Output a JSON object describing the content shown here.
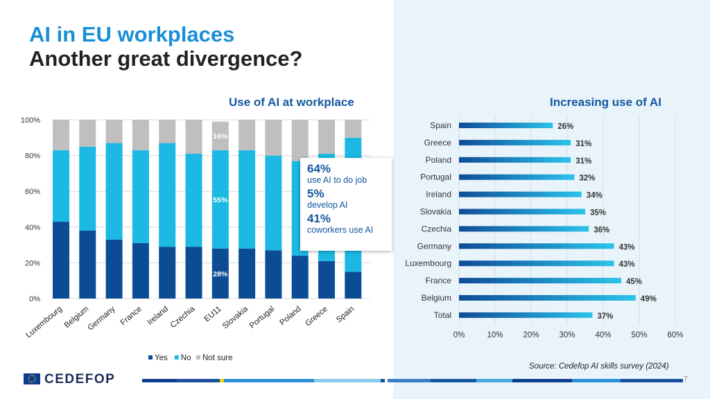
{
  "header": {
    "title_line1": "AI in EU workplaces",
    "title_line2": "Another great divergence?"
  },
  "colors": {
    "yes": "#0c4c94",
    "no": "#1bb9e3",
    "not_sure": "#bfbfbf",
    "bar_dark": "#0f4c97",
    "bar_light": "#2bc3ea",
    "title_blue": "#1a8fd6",
    "panel_bg": "#e9f3fa"
  },
  "chart_data": [
    {
      "type": "bar",
      "stacked": true,
      "title": "Use of AI at workplace",
      "categories": [
        "Luxembourg",
        "Belgium",
        "Germany",
        "France",
        "Ireland",
        "Czechia",
        "EU11",
        "Slovakia",
        "Portugal",
        "Poland",
        "Greece",
        "Spain"
      ],
      "series": [
        {
          "name": "Yes",
          "values": [
            43,
            38,
            33,
            31,
            29,
            29,
            28,
            28,
            27,
            24,
            21,
            15
          ]
        },
        {
          "name": "No",
          "values": [
            40,
            47,
            54,
            52,
            58,
            52,
            55,
            55,
            53,
            53,
            60,
            75
          ]
        },
        {
          "name": "Not sure",
          "values": [
            17,
            15,
            13,
            17,
            13,
            19,
            16,
            17,
            20,
            23,
            19,
            10
          ]
        }
      ],
      "data_labels": [
        {
          "category": "EU11",
          "series": "Not sure",
          "text": "16%"
        },
        {
          "category": "EU11",
          "series": "No",
          "text": "55%"
        },
        {
          "category": "EU11",
          "series": "Yes",
          "text": "28%"
        }
      ],
      "y_ticks": [
        "0%",
        "20%",
        "40%",
        "60%",
        "80%",
        "100%"
      ],
      "ylim": [
        0,
        100
      ],
      "legend": [
        "Yes",
        "No",
        "Not sure"
      ],
      "legend_position": "bottom"
    },
    {
      "type": "bar",
      "orientation": "horizontal",
      "title": "Increasing use of AI",
      "categories": [
        "Spain",
        "Greece",
        "Poland",
        "Portugal",
        "Ireland",
        "Slovakia",
        "Czechia",
        "Germany",
        "Luxembourg",
        "France",
        "Belgium",
        "Total"
      ],
      "values": [
        26,
        31,
        31,
        32,
        34,
        35,
        36,
        43,
        43,
        45,
        49,
        37
      ],
      "labels": [
        "26%",
        "31%",
        "31%",
        "32%",
        "34%",
        "35%",
        "36%",
        "43%",
        "43%",
        "45%",
        "49%",
        "37%"
      ],
      "x_ticks": [
        "0%",
        "10%",
        "20%",
        "30%",
        "40%",
        "50%",
        "60%"
      ],
      "xlim": [
        0,
        60
      ]
    }
  ],
  "callout": {
    "stat1": "64%",
    "text1": "use AI to do job",
    "stat2": "5%",
    "text2": "develop AI",
    "stat3": "41%",
    "text3": "coworkers use AI"
  },
  "footer": {
    "source": "Source: Cedefop AI skills survey (2024)",
    "page": "7",
    "logo": "CEDEFOP"
  }
}
